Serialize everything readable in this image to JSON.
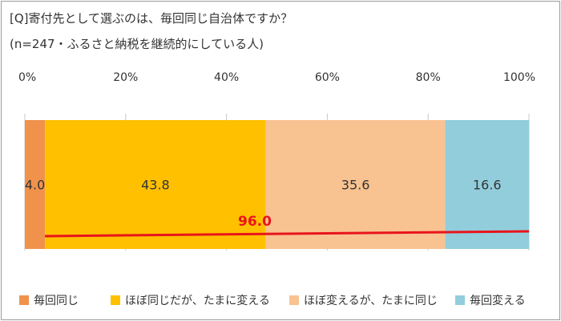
{
  "title": "[Q]寄付先として選ぶのは、毎回同じ自治体ですか？",
  "subtitle": "(n=247・ふるさと納税を継続的にしている人)",
  "chart_data": {
    "type": "bar",
    "orientation": "horizontal-stacked-100",
    "categories": [
      ""
    ],
    "xlim": [
      0,
      100
    ],
    "x_ticks": [
      "0%",
      "20%",
      "40%",
      "60%",
      "80%",
      "100%"
    ],
    "series": [
      {
        "name": "毎回同じ",
        "values": [
          4.0
        ],
        "label": "4.0",
        "color": "#f0924c"
      },
      {
        "name": "ほぼ同じだが、たまに変える",
        "values": [
          43.8
        ],
        "label": "43.8",
        "color": "#ffc000"
      },
      {
        "name": "ほぼ変えるが、たまに同じ",
        "values": [
          35.6
        ],
        "label": "35.6",
        "color": "#f8c291"
      },
      {
        "name": "毎回変える",
        "values": [
          16.6
        ],
        "label": "16.6",
        "color": "#92cddc"
      }
    ],
    "annotation": {
      "text": "96.0",
      "value": 96.0,
      "color": "#e8141b"
    },
    "legend_position": "bottom",
    "grid": false
  }
}
